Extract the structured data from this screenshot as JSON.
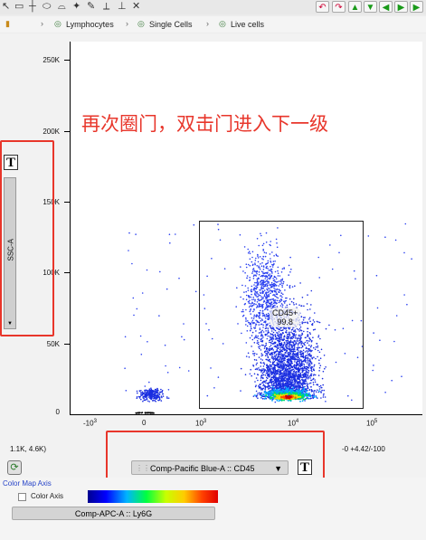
{
  "toolbar": {
    "tools": [
      "pointer-tool",
      "rectangle-gate-tool",
      "quadrant-tool",
      "ellipse-gate-tool",
      "polygon-gate-tool",
      "spider-gate-tool",
      "paint-gate-tool",
      "split-tool",
      "quad-tool"
    ],
    "right_buttons": [
      "undo",
      "redo",
      "arrow-up",
      "arrow-down",
      "arrow-left",
      "arrow-right"
    ]
  },
  "breadcrumb": {
    "items": [
      "Lymphocytes",
      "Single Cells",
      "Live cells"
    ]
  },
  "plot": {
    "y_axis_label": "SSC-A",
    "y_ticks": [
      "250K",
      "200K",
      "150K",
      "100K",
      "50K",
      "0"
    ],
    "x_ticks": [
      {
        "base": "-10",
        "exp": "3"
      },
      {
        "base": "0",
        "exp": ""
      },
      {
        "base": "10",
        "exp": "3"
      },
      {
        "base": "10",
        "exp": "4"
      },
      {
        "base": "10",
        "exp": "5"
      }
    ],
    "coords_left": "1.1K, 4.6K)",
    "coords_right": "-0 +4.42/-100",
    "gate_name": "CD45+",
    "gate_value": "99.8",
    "annotation": "再次圈门，双击门进入下一级",
    "x_axis_select": "Comp-Pacific Blue-A :: CD45",
    "t_label": "T"
  },
  "color_map": {
    "title": "Color Map Axis",
    "checkbox_label": "Color Axis",
    "parameter": "Comp-APC-A :: Ly6G"
  },
  "colors": {
    "annotation_red": "#e8362b",
    "axis_title_blue": "#2744c8"
  }
}
